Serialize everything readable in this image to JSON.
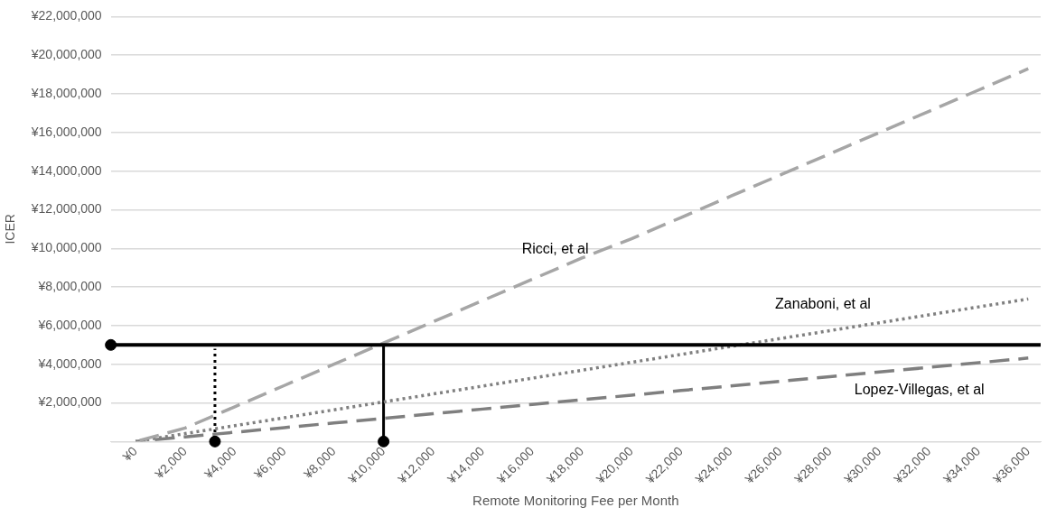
{
  "chart_data": {
    "type": "line",
    "xlabel": "Remote Monitoring Fee per Month",
    "ylabel": "ICER",
    "x": [
      0,
      2000,
      4000,
      6000,
      8000,
      10000,
      12000,
      14000,
      16000,
      18000,
      20000,
      22000,
      24000,
      26000,
      28000,
      30000,
      32000,
      34000,
      36000
    ],
    "xlim": [
      -1000,
      36500
    ],
    "xticks": [
      {
        "value": 0,
        "label": "¥0"
      },
      {
        "value": 2000,
        "label": "¥2,000"
      },
      {
        "value": 4000,
        "label": "¥4,000"
      },
      {
        "value": 6000,
        "label": "¥6,000"
      },
      {
        "value": 8000,
        "label": "¥8,000"
      },
      {
        "value": 10000,
        "label": "¥10,000"
      },
      {
        "value": 12000,
        "label": "¥12,000"
      },
      {
        "value": 14000,
        "label": "¥14,000"
      },
      {
        "value": 16000,
        "label": "¥16,000"
      },
      {
        "value": 18000,
        "label": "¥18,000"
      },
      {
        "value": 20000,
        "label": "¥20,000"
      },
      {
        "value": 22000,
        "label": "¥22,000"
      },
      {
        "value": 24000,
        "label": "¥24,000"
      },
      {
        "value": 26000,
        "label": "¥26,000"
      },
      {
        "value": 28000,
        "label": "¥28,000"
      },
      {
        "value": 30000,
        "label": "¥30,000"
      },
      {
        "value": 32000,
        "label": "¥32,000"
      },
      {
        "value": 34000,
        "label": "¥34,000"
      },
      {
        "value": 36000,
        "label": "¥36,000"
      }
    ],
    "ylim": [
      0,
      22000000
    ],
    "yticks": [
      {
        "value": 0,
        "label": null
      },
      {
        "value": 2000000,
        "label": "¥2,000,000"
      },
      {
        "value": 4000000,
        "label": "¥4,000,000"
      },
      {
        "value": 6000000,
        "label": "¥6,000,000"
      },
      {
        "value": 8000000,
        "label": "¥8,000,000"
      },
      {
        "value": 10000000,
        "label": "¥10,000,000"
      },
      {
        "value": 12000000,
        "label": "¥12,000,000"
      },
      {
        "value": 14000000,
        "label": "¥14,000,000"
      },
      {
        "value": 16000000,
        "label": "¥16,000,000"
      },
      {
        "value": 18000000,
        "label": "¥18,000,000"
      },
      {
        "value": 20000000,
        "label": "¥20,000,000"
      },
      {
        "value": 22000000,
        "label": "¥22,000,000"
      }
    ],
    "grid": "y",
    "legend": false,
    "ref_lines": [
      {
        "axis": "y",
        "value": 5000000,
        "color": "#000000",
        "line_style": "solid"
      }
    ],
    "series": [
      {
        "name": "Ricci, et al",
        "color": "#a6a6a6",
        "line_style": "dashed",
        "marker": "none",
        "values": [
          0,
          700000,
          1800000,
          2900000,
          4000000,
          5100000,
          6200000,
          7300000,
          8400000,
          9500000,
          10500000,
          11600000,
          12700000,
          13800000,
          14900000,
          16000000,
          17100000,
          18200000,
          19300000
        ]
      },
      {
        "name": "Zanaboni, et al",
        "color": "#808080",
        "line_style": "dotted",
        "marker": "none",
        "values": [
          0,
          410000,
          820000,
          1230000,
          1640000,
          2050000,
          2460000,
          2870000,
          3280000,
          3690000,
          4100000,
          4510000,
          4920000,
          5330000,
          5740000,
          6150000,
          6560000,
          6970000,
          7380000
        ]
      },
      {
        "name": "Lopez-Villegas, et al",
        "color": "#7f7f7f",
        "line_style": "dashed",
        "marker": "none",
        "values": [
          0,
          240000,
          480000,
          720000,
          960000,
          1200000,
          1440000,
          1680000,
          1920000,
          2160000,
          2400000,
          2640000,
          2880000,
          3120000,
          3360000,
          3600000,
          3840000,
          4080000,
          4320000
        ]
      },
      {
        "type": "line",
        "color": "#000000",
        "line_style": "dotted",
        "marker": "none",
        "x": [
          3200,
          3200
        ],
        "values": [
          0,
          4800000
        ]
      },
      {
        "type": "line",
        "color": "#000000",
        "line_style": "solid",
        "marker": "none",
        "x": [
          10000,
          10000
        ],
        "values": [
          0,
          5000000
        ]
      },
      {
        "type": "scatter",
        "color": "#000000",
        "marker": "circle",
        "x": [
          -1000,
          3200,
          10000
        ],
        "values": [
          5000000,
          0,
          0
        ]
      }
    ]
  }
}
